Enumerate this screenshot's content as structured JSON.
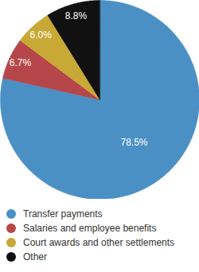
{
  "chart_data": {
    "type": "pie",
    "categories": [
      "Transfer payments",
      "Salaries and employee benefits",
      "Court awards and other settlements",
      "Other"
    ],
    "values": [
      78.5,
      6.7,
      6.0,
      8.8
    ],
    "value_labels": [
      "78.5%",
      "6.7%",
      "6.0%",
      "8.8%"
    ],
    "colors": [
      "#4a90c4",
      "#b5474b",
      "#c8a936",
      "#111111"
    ],
    "data_labels": true,
    "legend": "bottom"
  }
}
